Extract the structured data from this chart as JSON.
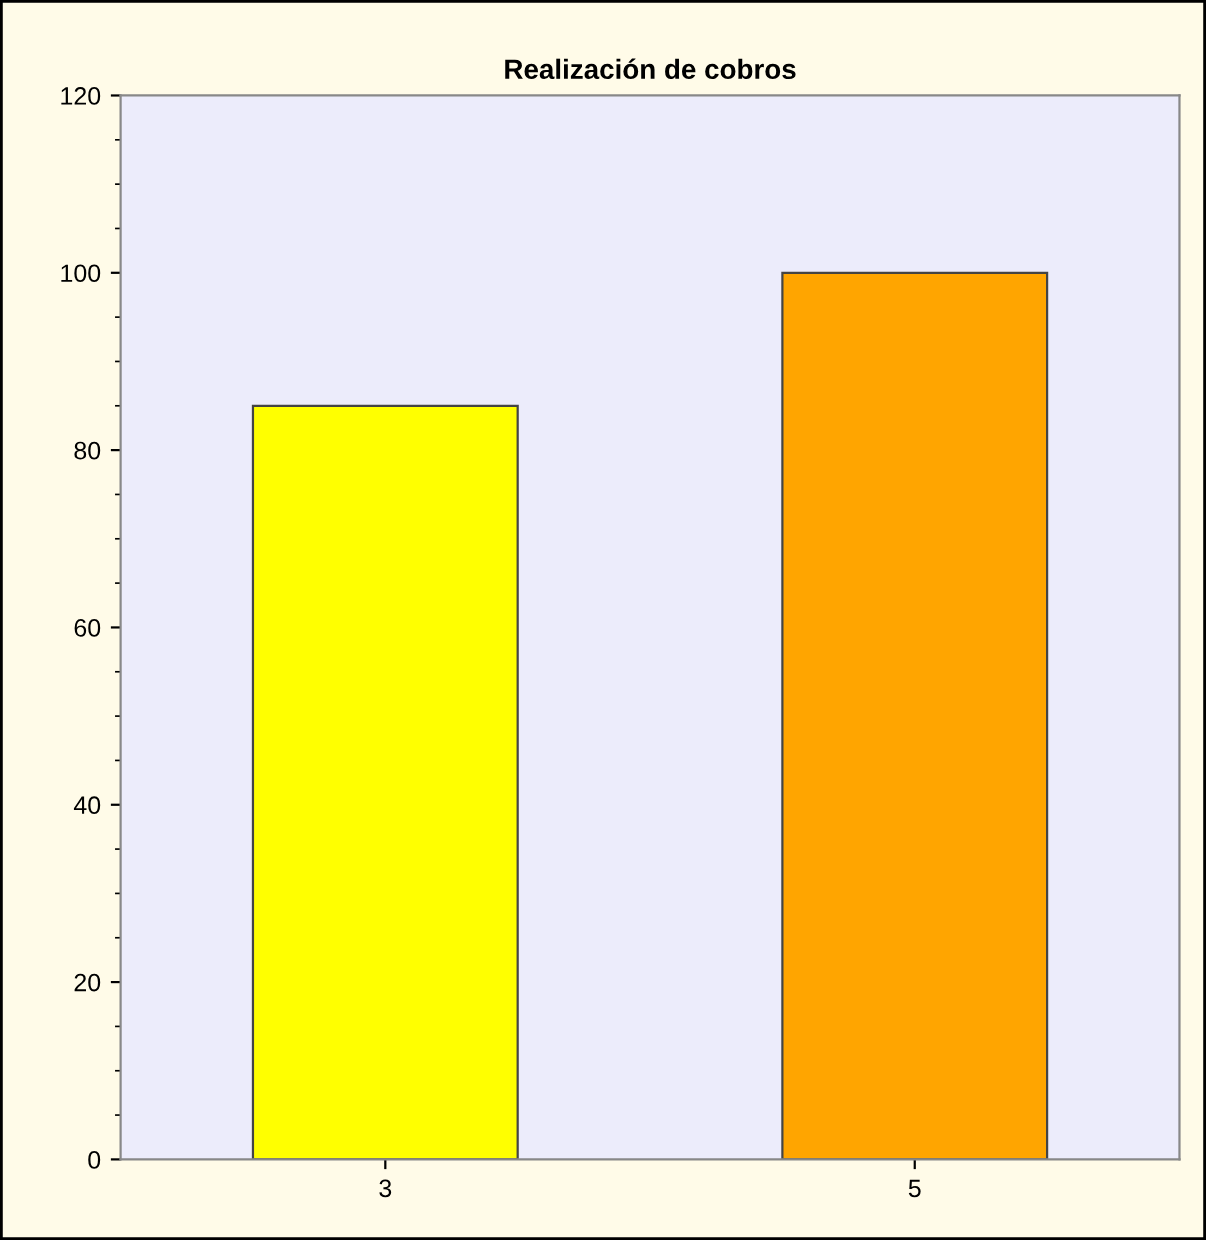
{
  "chart_data": {
    "type": "bar",
    "title": "Realización de cobros",
    "categories": [
      "3",
      "5"
    ],
    "values": [
      85,
      100
    ],
    "colors": [
      "#ffff00",
      "#ffa500"
    ],
    "ylim": [
      0,
      120
    ],
    "yticks": [
      0,
      20,
      40,
      60,
      80,
      100,
      120
    ],
    "grid": false
  }
}
